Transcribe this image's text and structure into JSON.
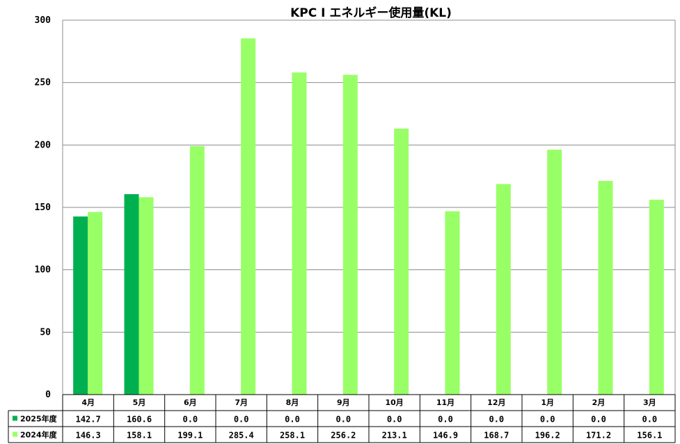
{
  "chart_data": {
    "type": "bar",
    "title": "KPC I エネルギー使用量(KL)",
    "categories": [
      "4月",
      "5月",
      "6月",
      "7月",
      "8月",
      "9月",
      "10月",
      "11月",
      "12月",
      "1月",
      "2月",
      "3月"
    ],
    "series": [
      {
        "name": "2025年度",
        "color": "#00b050",
        "values": [
          142.7,
          160.6,
          0.0,
          0.0,
          0.0,
          0.0,
          0.0,
          0.0,
          0.0,
          0.0,
          0.0,
          0.0
        ],
        "labels": [
          "142.7",
          "160.6",
          "0.0",
          "0.0",
          "0.0",
          "0.0",
          "0.0",
          "0.0",
          "0.0",
          "0.0",
          "0.0",
          "0.0"
        ]
      },
      {
        "name": "2024年度",
        "color": "#99ff66",
        "values": [
          146.3,
          158.1,
          199.1,
          285.4,
          258.1,
          256.2,
          213.1,
          146.9,
          168.7,
          196.2,
          171.2,
          156.1
        ],
        "labels": [
          "146.3",
          "158.1",
          "199.1",
          "285.4",
          "258.1",
          "256.2",
          "213.1",
          "146.9",
          "168.7",
          "196.2",
          "171.2",
          "156.1"
        ]
      }
    ],
    "yticks": [
      "0",
      "50",
      "100",
      "150",
      "200",
      "250",
      "300"
    ],
    "ylim": [
      0,
      300
    ],
    "grid": true,
    "legend": "data-table"
  }
}
